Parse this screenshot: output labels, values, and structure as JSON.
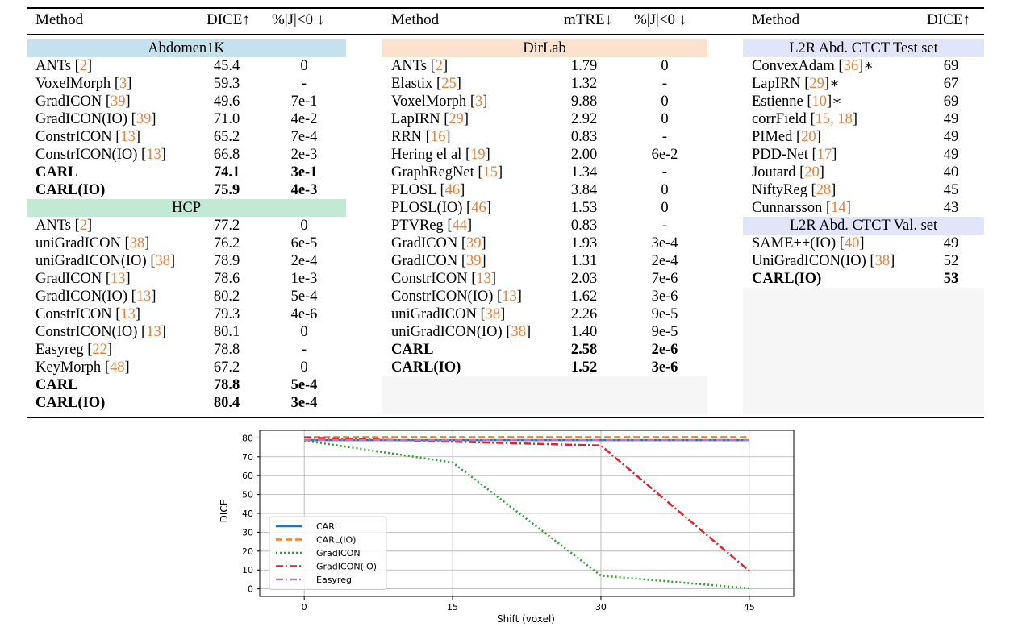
{
  "table": {
    "headers": {
      "left": {
        "method": "Method",
        "dice": "DICE↑",
        "jac": "%|J|<0 ↓"
      },
      "middle": {
        "method": "Method",
        "mtre": "mTRE↓",
        "jac": "%|J|<0 ↓"
      },
      "right": {
        "method": "Method",
        "dice": "DICE↑"
      }
    },
    "sections": {
      "abdomen": {
        "title": "Abdomen1K",
        "color": "#c4e2ee",
        "rows": [
          {
            "name": "ANTs",
            "cite": "2",
            "v1": "45.4",
            "v2": "0",
            "bold": false
          },
          {
            "name": "VoxelMorph",
            "cite": "3",
            "v1": "59.3",
            "v2": "-",
            "bold": false
          },
          {
            "name": "GradICON",
            "cite": "39",
            "v1": "49.6",
            "v2": "7e-1",
            "bold": false
          },
          {
            "name": "GradICON(IO)",
            "cite": "39",
            "v1": "71.0",
            "v2": "4e-2",
            "bold": false
          },
          {
            "name": "ConstrICON",
            "cite": "13",
            "v1": "65.2",
            "v2": "7e-4",
            "bold": false
          },
          {
            "name": "ConstrICON(IO)",
            "cite": "13",
            "v1": "66.8",
            "v2": "2e-3",
            "bold": false
          },
          {
            "name": "CARL",
            "cite": "",
            "v1": "74.1",
            "v2": "3e-1",
            "bold": true
          },
          {
            "name": "CARL(IO)",
            "cite": "",
            "v1": "75.9",
            "v2": "4e-3",
            "bold": true
          }
        ]
      },
      "hcp": {
        "title": "HCP",
        "color": "#c2e8d6",
        "rows": [
          {
            "name": "ANTs",
            "cite": "2",
            "v1": "77.2",
            "v2": "0",
            "bold": false
          },
          {
            "name": "uniGradICON",
            "cite": "38",
            "v1": "76.2",
            "v2": "6e-5",
            "bold": false
          },
          {
            "name": "uniGradICON(IO)",
            "cite": "38",
            "v1": "78.9",
            "v2": "2e-4",
            "bold": false
          },
          {
            "name": "GradICON",
            "cite": "13",
            "v1": "78.6",
            "v2": "1e-3",
            "bold": false
          },
          {
            "name": "GradICON(IO)",
            "cite": "13",
            "v1": "80.2",
            "v2": "5e-4",
            "bold": false
          },
          {
            "name": "ConstrICON",
            "cite": "13",
            "v1": "79.3",
            "v2": "4e-6",
            "bold": false
          },
          {
            "name": "ConstrICON(IO)",
            "cite": "13",
            "v1": "80.1",
            "v2": "0",
            "bold": false
          },
          {
            "name": "Easyreg",
            "cite": "22",
            "v1": "78.8",
            "v2": "-",
            "bold": false
          },
          {
            "name": "KeyMorph",
            "cite": "48",
            "v1": "67.2",
            "v2": "0",
            "bold": false
          },
          {
            "name": "CARL",
            "cite": "",
            "v1": "78.8",
            "v2": "5e-4",
            "bold": true
          },
          {
            "name": "CARL(IO)",
            "cite": "",
            "v1": "80.4",
            "v2": "3e-4",
            "bold": true
          }
        ]
      },
      "dirlab": {
        "title": "DirLab",
        "color": "#fce1cc",
        "rows": [
          {
            "name": "ANTs",
            "cite": "2",
            "v1": "1.79",
            "v2": "0",
            "bold": false
          },
          {
            "name": "Elastix",
            "cite": "25",
            "v1": "1.32",
            "v2": "-",
            "bold": false
          },
          {
            "name": "VoxelMorph",
            "cite": "3",
            "v1": "9.88",
            "v2": "0",
            "bold": false
          },
          {
            "name": "LapIRN",
            "cite": "29",
            "v1": "2.92",
            "v2": "0",
            "bold": false
          },
          {
            "name": "RRN",
            "cite": "16",
            "v1": "0.83",
            "v2": "-",
            "bold": false
          },
          {
            "name": "Hering el al",
            "cite": "19",
            "v1": "2.00",
            "v2": "6e-2",
            "bold": false
          },
          {
            "name": "GraphRegNet",
            "cite": "15",
            "v1": "1.34",
            "v2": "-",
            "bold": false
          },
          {
            "name": "PLOSL",
            "cite": "46",
            "v1": "3.84",
            "v2": "0",
            "bold": false
          },
          {
            "name": "PLOSL(IO)",
            "cite": "46",
            "v1": "1.53",
            "v2": "0",
            "bold": false
          },
          {
            "name": "PTVReg",
            "cite": "44",
            "v1": "0.83",
            "v2": "-",
            "bold": false
          },
          {
            "name": "GradICON",
            "cite": "39",
            "v1": "1.93",
            "v2": "3e-4",
            "bold": false
          },
          {
            "name": "GradICON",
            "cite": "39",
            "v1": "1.31",
            "v2": "2e-4",
            "bold": false
          },
          {
            "name": "ConstrICON",
            "cite": "13",
            "v1": "2.03",
            "v2": "7e-6",
            "bold": false
          },
          {
            "name": "ConstrICON(IO)",
            "cite": "13",
            "v1": "1.62",
            "v2": "3e-6",
            "bold": false
          },
          {
            "name": "uniGradICON",
            "cite": "38",
            "v1": "2.26",
            "v2": "9e-5",
            "bold": false
          },
          {
            "name": "uniGradICON(IO)",
            "cite": "38",
            "v1": "1.40",
            "v2": "9e-5",
            "bold": false
          },
          {
            "name": "CARL",
            "cite": "",
            "v1": "2.58",
            "v2": "2e-6",
            "bold": true
          },
          {
            "name": "CARL(IO)",
            "cite": "",
            "v1": "1.52",
            "v2": "3e-6",
            "bold": true
          }
        ]
      },
      "l2r_test": {
        "title": "L2R Abd. CTCT Test set",
        "color": "#e2e4fa",
        "rows": [
          {
            "name": "ConvexAdam",
            "cite": "36",
            "suffix": "∗",
            "v1": "69",
            "bold": false
          },
          {
            "name": "LapIRN",
            "cite": "29",
            "suffix": "∗",
            "v1": "67",
            "bold": false
          },
          {
            "name": "Estienne",
            "cite": "10",
            "suffix": "∗",
            "v1": "69",
            "bold": false
          },
          {
            "name": "corrField",
            "cite": "15, 18",
            "suffix": "",
            "v1": "49",
            "bold": false
          },
          {
            "name": "PIMed",
            "cite": "20",
            "suffix": "",
            "v1": "49",
            "bold": false
          },
          {
            "name": "PDD-Net",
            "cite": "17",
            "suffix": "",
            "v1": "49",
            "bold": false
          },
          {
            "name": "Joutard",
            "cite": "20",
            "suffix": "",
            "v1": "40",
            "bold": false
          },
          {
            "name": "NiftyReg",
            "cite": "28",
            "suffix": "",
            "v1": "45",
            "bold": false
          },
          {
            "name": "Cunnarsson",
            "cite": "14",
            "suffix": "",
            "v1": "43",
            "bold": false
          }
        ]
      },
      "l2r_val": {
        "title": "L2R Abd. CTCT Val. set",
        "color": "#e2e4fa",
        "rows": [
          {
            "name": "SAME++(IO)",
            "cite": "40",
            "suffix": "",
            "v1": "49",
            "bold": false
          },
          {
            "name": "UniGradICON(IO)",
            "cite": "38",
            "suffix": "",
            "v1": "52",
            "bold": false
          },
          {
            "name": "CARL(IO)",
            "cite": "",
            "suffix": "",
            "v1": "53",
            "bold": true
          }
        ]
      }
    }
  },
  "chart_data": {
    "type": "line",
    "xlabel": "Shift (voxel)",
    "ylabel": "DICE",
    "x": [
      0,
      15,
      30,
      45
    ],
    "xticks": [
      0,
      15,
      30,
      45
    ],
    "yticks": [
      0,
      10,
      20,
      30,
      40,
      50,
      60,
      70,
      80
    ],
    "xlim": [
      -4.5,
      49.5
    ],
    "ylim": [
      -4,
      84
    ],
    "grid": true,
    "legend_position": "lower-left",
    "series": [
      {
        "name": "CARL",
        "values": [
          78.8,
          78.8,
          78.8,
          78.8
        ],
        "color": "#1f77b4",
        "dash": "solid"
      },
      {
        "name": "CARL(IO)",
        "values": [
          80.4,
          80.4,
          80.4,
          80.4
        ],
        "color": "#ff7f0e",
        "dash": "dashed"
      },
      {
        "name": "GradICON",
        "values": [
          78.6,
          67,
          7,
          0.3
        ],
        "color": "#2ca02c",
        "dash": "dotted"
      },
      {
        "name": "GradICON(IO)",
        "values": [
          80.2,
          78,
          76,
          9.5
        ],
        "color": "#e8202a",
        "dash": "dashdot"
      },
      {
        "name": "Easyreg",
        "values": [
          78.8,
          78.8,
          78.8,
          78.8
        ],
        "color": "#b07cc6",
        "dash": "dashdot"
      }
    ]
  }
}
